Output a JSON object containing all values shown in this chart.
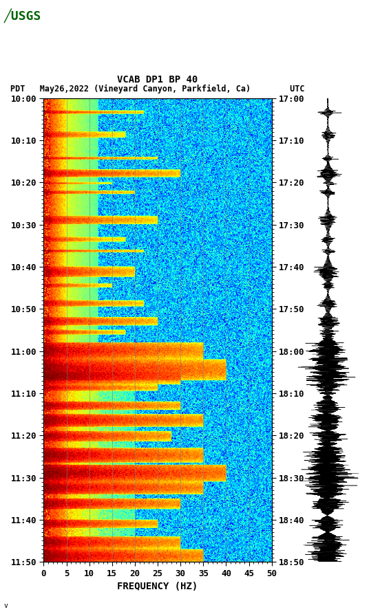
{
  "title_line1": "VCAB DP1 BP 40",
  "title_line2": "PDT   May26,2022 (Vineyard Canyon, Parkfield, Ca)        UTC",
  "xlabel": "FREQUENCY (HZ)",
  "freq_min": 0,
  "freq_max": 50,
  "freq_ticks": [
    0,
    5,
    10,
    15,
    20,
    25,
    30,
    35,
    40,
    45,
    50
  ],
  "time_start_pdt": "10:00",
  "time_end_pdt": "11:50",
  "time_start_utc": "17:00",
  "time_end_utc": "18:50",
  "left_time_labels": [
    "10:00",
    "10:10",
    "10:20",
    "10:30",
    "10:40",
    "10:50",
    "11:00",
    "11:10",
    "11:20",
    "11:30",
    "11:40",
    "11:50"
  ],
  "right_time_labels": [
    "17:00",
    "17:10",
    "17:20",
    "17:30",
    "17:40",
    "17:50",
    "18:00",
    "18:10",
    "18:20",
    "18:30",
    "18:40",
    "18:50"
  ],
  "bg_color": "white",
  "spectrogram_colormap": "jet",
  "grid_color": "#808080",
  "grid_alpha": 0.5,
  "font_family": "monospace",
  "title_fontsize": 10,
  "tick_fontsize": 9,
  "label_fontsize": 10,
  "pdt_minutes": [
    0,
    10,
    20,
    30,
    40,
    50,
    60,
    70,
    80,
    90,
    100,
    110
  ],
  "grid_freqs": [
    5,
    10,
    15,
    20,
    25,
    30,
    35,
    40,
    45
  ],
  "event_times": [
    3,
    8,
    14,
    17,
    20,
    22,
    28,
    33,
    36,
    40,
    44,
    48,
    52,
    55,
    58,
    62,
    65,
    68,
    72,
    75,
    79,
    83,
    87,
    91,
    95,
    100,
    104,
    107
  ],
  "event_widths": [
    0.8,
    1.5,
    0.6,
    1.8,
    0.5,
    0.8,
    2.0,
    1.2,
    0.6,
    2.5,
    1.0,
    1.5,
    2.0,
    1.2,
    4.0,
    5.0,
    3.0,
    1.5,
    2.0,
    3.0,
    2.5,
    3.5,
    4.0,
    3.0,
    2.5,
    2.0,
    3.0,
    3.5
  ],
  "event_freq_cutoffs": [
    22,
    18,
    25,
    30,
    15,
    20,
    25,
    18,
    22,
    20,
    15,
    22,
    25,
    18,
    35,
    40,
    30,
    25,
    30,
    35,
    28,
    35,
    40,
    35,
    30,
    25,
    30,
    35
  ],
  "event_intensities": [
    2.0,
    1.5,
    1.8,
    2.5,
    1.5,
    1.8,
    2.0,
    1.5,
    1.8,
    2.5,
    1.5,
    2.0,
    2.5,
    1.8,
    3.5,
    4.0,
    3.0,
    2.5,
    3.0,
    3.5,
    3.0,
    4.0,
    5.0,
    4.0,
    3.5,
    3.0,
    3.5,
    4.0
  ]
}
